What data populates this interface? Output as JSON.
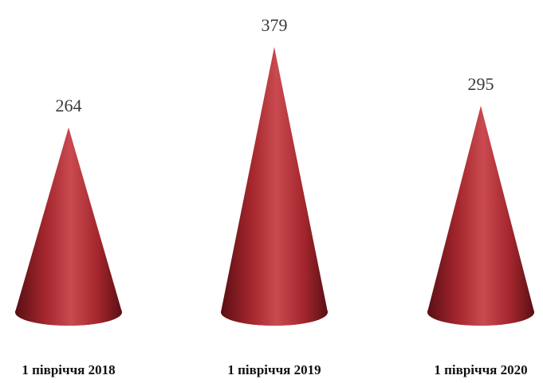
{
  "chart_data": {
    "type": "bar",
    "mark_shape": "cone",
    "categories": [
      "1 півріччя 2018",
      "1 півріччя 2019",
      "1 півріччя 2020"
    ],
    "values": [
      264,
      379,
      295
    ],
    "series": [
      {
        "values": [
          264,
          379,
          295
        ]
      }
    ],
    "title": "",
    "xlabel": "",
    "ylabel": "",
    "ylim": [
      0,
      379
    ],
    "grid": false,
    "legend": "none",
    "data_labels": [
      "264",
      "379",
      "295"
    ]
  },
  "colors": {
    "cone_dark": "#5a0f14",
    "cone_mid": "#a3262d",
    "cone_light": "#c94a4f",
    "value_text": "#3a3a3a",
    "category_text": "#111111",
    "background": "#ffffff"
  }
}
